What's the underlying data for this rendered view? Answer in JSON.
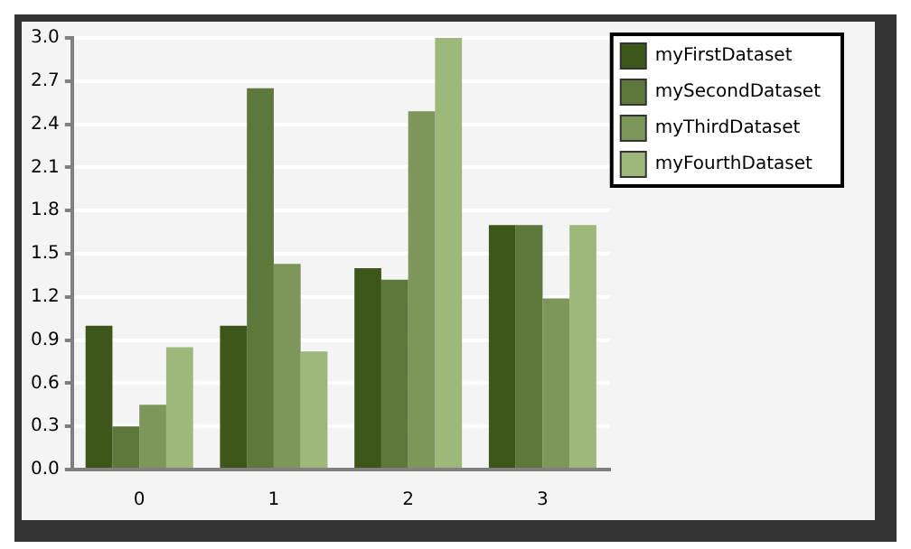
{
  "chart_data": {
    "type": "bar",
    "categories": [
      "0",
      "1",
      "2",
      "3"
    ],
    "series": [
      {
        "name": "myFirstDataset",
        "color": "#3d571b",
        "values": [
          1.0,
          1.0,
          1.4,
          1.7
        ]
      },
      {
        "name": "mySecondDataset",
        "color": "#5d783a",
        "values": [
          0.3,
          2.65,
          1.32,
          1.7
        ]
      },
      {
        "name": "myThirdDataset",
        "color": "#7d9659",
        "values": [
          0.45,
          1.43,
          2.49,
          1.19
        ]
      },
      {
        "name": "myFourthDataset",
        "color": "#9db87a",
        "values": [
          0.85,
          0.82,
          3.0,
          1.7
        ]
      }
    ],
    "ylim": [
      0,
      3.0
    ],
    "yticks": [
      {
        "value": 0,
        "label": "0.0"
      },
      {
        "value": 0.3,
        "label": "0.3"
      },
      {
        "value": 0.6,
        "label": "0.6"
      },
      {
        "value": 0.9,
        "label": "0.9"
      },
      {
        "value": 1.2,
        "label": "1.2"
      },
      {
        "value": 1.5,
        "label": "1.5"
      },
      {
        "value": 1.8,
        "label": "1.8"
      },
      {
        "value": 2.1,
        "label": "2.1"
      },
      {
        "value": 2.4,
        "label": "2.4"
      },
      {
        "value": 2.7,
        "label": "2.7"
      },
      {
        "value": 3.0,
        "label": "3.0"
      }
    ],
    "grid": "y",
    "legend": "right"
  }
}
